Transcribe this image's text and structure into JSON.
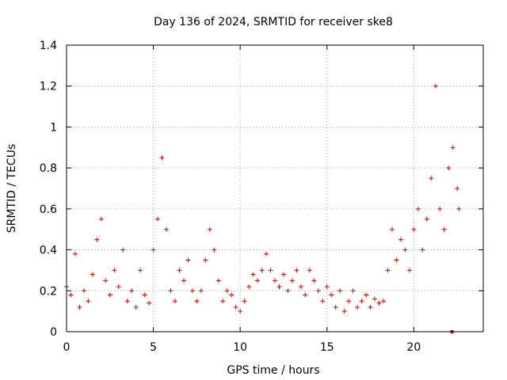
{
  "chart_data": {
    "type": "scatter",
    "title": "Day 136 of 2024, SRMTID for receiver ske8",
    "xlabel": "GPS time / hours",
    "ylabel": "SRMTID / TECUs",
    "xlim": [
      0,
      24
    ],
    "ylim": [
      0,
      1.4
    ],
    "x_ticks": [
      0,
      5,
      10,
      15,
      20
    ],
    "x_tick_labels": [
      "0",
      "5",
      "10",
      "15",
      "20"
    ],
    "y_ticks": [
      0,
      0.2,
      0.4,
      0.6,
      0.8,
      1.0,
      1.2,
      1.4
    ],
    "y_tick_labels": [
      "0",
      "0.2",
      "0.4",
      "0.6",
      "0.8",
      "1",
      "1.2",
      "1.4"
    ],
    "grid": true,
    "marker": "plus",
    "color": "#e00000",
    "series": [
      {
        "name": "SRMTID",
        "x": [
          0.0,
          0.25,
          0.5,
          0.75,
          1.0,
          1.25,
          1.5,
          1.75,
          2.0,
          2.25,
          2.5,
          2.75,
          3.0,
          3.25,
          3.5,
          3.75,
          4.0,
          4.25,
          4.5,
          4.75,
          5.0,
          5.25,
          5.5,
          5.75,
          6.0,
          6.25,
          6.5,
          6.75,
          7.0,
          7.25,
          7.5,
          7.75,
          8.0,
          8.25,
          8.5,
          8.75,
          9.0,
          9.25,
          9.5,
          9.75,
          10.0,
          10.25,
          10.5,
          10.75,
          11.0,
          11.25,
          11.5,
          11.75,
          12.0,
          12.25,
          12.5,
          12.75,
          13.0,
          13.25,
          13.5,
          13.75,
          14.0,
          14.25,
          14.5,
          14.75,
          15.0,
          15.25,
          15.5,
          15.75,
          16.0,
          16.25,
          16.5,
          16.75,
          17.0,
          17.25,
          17.5,
          17.75,
          18.0,
          18.25,
          18.5,
          18.75,
          19.0,
          19.25,
          19.5,
          19.75,
          20.0,
          20.25,
          20.5,
          20.75,
          21.0,
          21.25,
          21.5,
          21.75,
          22.0,
          22.25,
          22.5,
          22.6
        ],
        "y": [
          0.22,
          0.18,
          0.38,
          0.12,
          0.2,
          0.15,
          0.28,
          0.45,
          0.55,
          0.25,
          0.18,
          0.3,
          0.22,
          0.4,
          0.15,
          0.2,
          0.12,
          0.3,
          0.18,
          0.14,
          0.4,
          0.55,
          0.85,
          0.5,
          0.2,
          0.15,
          0.3,
          0.25,
          0.35,
          0.2,
          0.15,
          0.2,
          0.35,
          0.5,
          0.4,
          0.25,
          0.15,
          0.2,
          0.18,
          0.12,
          0.1,
          0.15,
          0.22,
          0.28,
          0.25,
          0.3,
          0.38,
          0.3,
          0.25,
          0.22,
          0.28,
          0.2,
          0.25,
          0.3,
          0.22,
          0.18,
          0.3,
          0.25,
          0.2,
          0.15,
          0.22,
          0.18,
          0.12,
          0.2,
          0.1,
          0.15,
          0.2,
          0.12,
          0.15,
          0.18,
          0.12,
          0.16,
          0.14,
          0.15,
          0.3,
          0.5,
          0.35,
          0.45,
          0.4,
          0.3,
          0.5,
          0.6,
          0.4,
          0.55,
          0.75,
          1.2,
          0.6,
          0.5,
          0.8,
          0.9,
          0.7,
          0.6
        ]
      }
    ],
    "outlier": {
      "x": 22.2,
      "y": 0.0
    }
  }
}
